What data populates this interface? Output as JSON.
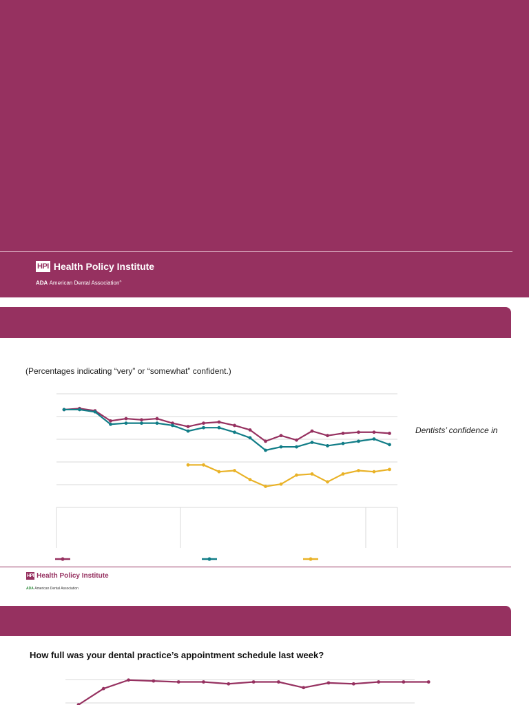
{
  "cover": {
    "logo_mark": "HPI",
    "logo_title": "Health Policy Institute",
    "org_abbr": "ADA",
    "org_name": "American Dental Association",
    "brand_color": "#963160"
  },
  "slide2": {
    "subtitle": "(Percentages indicating “very” or “somewhat” confident.)",
    "side_note": "Dentists’ confidence in",
    "footer_logo_mark": "HPI",
    "footer_logo_title": "Health Policy Institute",
    "footer_org_abbr": "ADA",
    "footer_org_name": "American Dental Association"
  },
  "slide3": {
    "question": "How full was your dental practice’s appointment schedule last week?"
  },
  "chart_data": [
    {
      "type": "line",
      "value_units": "relative plot-area percent (no tick labels printed)",
      "grid": true,
      "ylim": [
        0,
        100
      ],
      "legend_position": "bottom",
      "legend_entries": 3,
      "series": [
        {
          "color": "#963160",
          "x": [
            1,
            2,
            3,
            4,
            5,
            6,
            7,
            8,
            9,
            10,
            11,
            12,
            13,
            14,
            15,
            16,
            17,
            18,
            19,
            20,
            21,
            22
          ],
          "values": [
            86,
            87,
            85,
            76,
            78,
            77,
            78,
            74,
            71,
            74,
            75,
            72,
            68,
            58,
            63,
            59,
            67,
            63,
            65,
            66,
            66,
            65
          ]
        },
        {
          "color": "#117d87",
          "x": [
            1,
            2,
            3,
            4,
            5,
            6,
            7,
            8,
            9,
            10,
            11,
            12,
            13,
            14,
            15,
            16,
            17,
            18,
            19,
            20,
            21,
            22
          ],
          "values": [
            86,
            86,
            84,
            73,
            74,
            74,
            74,
            72,
            67,
            70,
            70,
            66,
            61,
            50,
            53,
            53,
            57,
            54,
            56,
            58,
            60,
            55
          ]
        },
        {
          "color": "#e9b227",
          "x": [
            9,
            10,
            11,
            12,
            13,
            14,
            15,
            16,
            17,
            18,
            19,
            20,
            21,
            22
          ],
          "values": [
            37,
            37,
            31,
            32,
            24,
            18,
            20,
            28,
            29,
            22,
            29,
            32,
            31,
            33
          ]
        }
      ]
    },
    {
      "type": "line",
      "value_units": "relative plot-area percent (partially visible chart)",
      "grid": true,
      "series": [
        {
          "color": "#963160",
          "x": [
            1,
            2,
            3,
            4,
            5,
            6,
            7,
            8,
            9,
            10,
            11,
            12,
            13,
            14,
            15
          ],
          "values": [
            1,
            18,
            27,
            26,
            25,
            25,
            23,
            25,
            25,
            19,
            24,
            23,
            25,
            25,
            25
          ]
        }
      ]
    }
  ]
}
